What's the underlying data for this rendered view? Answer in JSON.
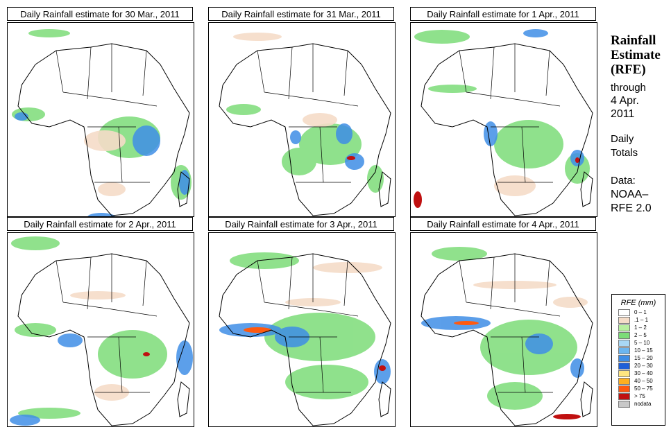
{
  "panels": [
    {
      "title": "Daily Rainfall estimate for  30 Mar., 2011"
    },
    {
      "title": "Daily Rainfall estimate for  31 Mar., 2011"
    },
    {
      "title": "Daily Rainfall estimate for  1 Apr., 2011"
    },
    {
      "title": "Daily Rainfall estimate for  2 Apr., 2011"
    },
    {
      "title": "Daily Rainfall estimate for  3 Apr., 2011"
    },
    {
      "title": "Daily Rainfall estimate for  4 Apr., 2011"
    }
  ],
  "side": {
    "title_line1": "Rainfall",
    "title_line2": "Estimate",
    "title_line3": "(RFE)",
    "through_label": "through",
    "through_date_line1": "4 Apr.",
    "through_date_line2": "2011",
    "daily_line1": "Daily",
    "daily_line2": "Totals",
    "data_line1": "Data:",
    "data_line2": "NOAA–",
    "data_line3": "RFE 2.0"
  },
  "legend": {
    "title": "RFE (mm)",
    "items": [
      {
        "label": "0 – 1",
        "color": "#ffffff"
      },
      {
        "label": ".1 – 1",
        "color": "#f5dcc8"
      },
      {
        "label": "1 – 2",
        "color": "#b8f0a0"
      },
      {
        "label": "2 – 5",
        "color": "#7cdc78"
      },
      {
        "label": "5 – 10",
        "color": "#a9d8f5"
      },
      {
        "label": "10 – 15",
        "color": "#6cb6f0"
      },
      {
        "label": "15 – 20",
        "color": "#3f8ee6"
      },
      {
        "label": "20 – 30",
        "color": "#1f5fd8"
      },
      {
        "label": "30 – 40",
        "color": "#ffe680"
      },
      {
        "label": "40 – 50",
        "color": "#ffb020"
      },
      {
        "label": "50 – 75",
        "color": "#ff5a10"
      },
      {
        "label": "> 75",
        "color": "#c01010"
      },
      {
        "label": "nodata",
        "color": "#c8c8c8"
      }
    ]
  }
}
